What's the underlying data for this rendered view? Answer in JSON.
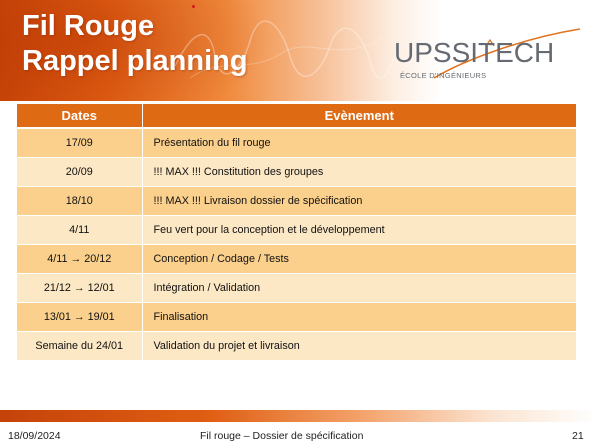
{
  "slide": {
    "title_line1": "Fil Rouge",
    "title_line2": "Rappel planning"
  },
  "logo": {
    "name": "UPSSITECH",
    "subtitle": "ÉCOLE D'INGÉNIEURS"
  },
  "table": {
    "headers": [
      "Dates",
      "Evènement"
    ],
    "rows": [
      {
        "date": "17/09",
        "event": "Présentation du fil rouge"
      },
      {
        "date": "20/09",
        "event": "!!! MAX !!! Constitution des groupes"
      },
      {
        "date": "18/10",
        "event": "!!! MAX !!! Livraison dossier de spécification"
      },
      {
        "date": "4/11",
        "event": "Feu vert pour la conception et le développement"
      },
      {
        "date": "4/11 → 20/12",
        "event": "Conception / Codage / Tests"
      },
      {
        "date": "21/12 → 12/01",
        "event": "Intégration / Validation"
      },
      {
        "date": "13/01 → 19/01",
        "event": "Finalisation"
      },
      {
        "date": "Semaine du 24/01",
        "event": "Validation du projet et livraison"
      }
    ]
  },
  "footer": {
    "date": "18/09/2024",
    "title": "Fil rouge – Dossier de spécification",
    "page": "21"
  },
  "colors": {
    "accent_orange": "#de6a14",
    "row_dark": "#fbd08c",
    "row_light": "#fde8c6"
  }
}
